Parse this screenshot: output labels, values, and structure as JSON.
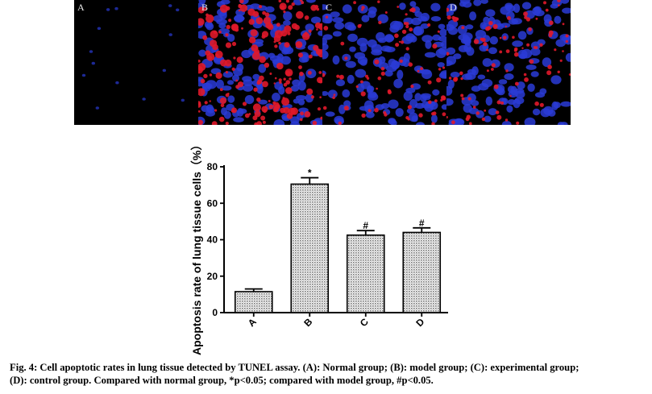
{
  "panels": [
    {
      "label": "A",
      "condition": "normal",
      "red_density": 0.0
    },
    {
      "label": "B",
      "condition": "model",
      "red_density": 0.85
    },
    {
      "label": "C",
      "condition": "experimental",
      "red_density": 0.35
    },
    {
      "label": "D",
      "condition": "control",
      "red_density": 0.4
    }
  ],
  "colors": {
    "nuclei": "#2a3bd6",
    "apoptotic": "#e0182a",
    "bar_pattern": "#888888"
  },
  "chart_data": {
    "type": "bar",
    "categories": [
      "A",
      "B",
      "C",
      "D"
    ],
    "values": [
      11.5,
      70.5,
      42.5,
      44.0
    ],
    "errors": [
      1.5,
      3.5,
      2.5,
      2.5
    ],
    "annotations": [
      "",
      "*",
      "#",
      "#"
    ],
    "ylabel": "Apoptosis rate of lung tissue cells（%）",
    "xlabel": "",
    "ylim": [
      0,
      80
    ],
    "yticks": [
      0,
      20,
      40,
      60,
      80
    ],
    "grid": false
  },
  "caption": {
    "line1": "Fig. 4: Cell apoptotic rates in lung tissue detected by TUNEL assay. (A): Normal group; (B): model group; (C): experimental group;",
    "line2": "(D): control group. Compared with normal group, *p<0.05; compared with model group, #p<0.05."
  }
}
